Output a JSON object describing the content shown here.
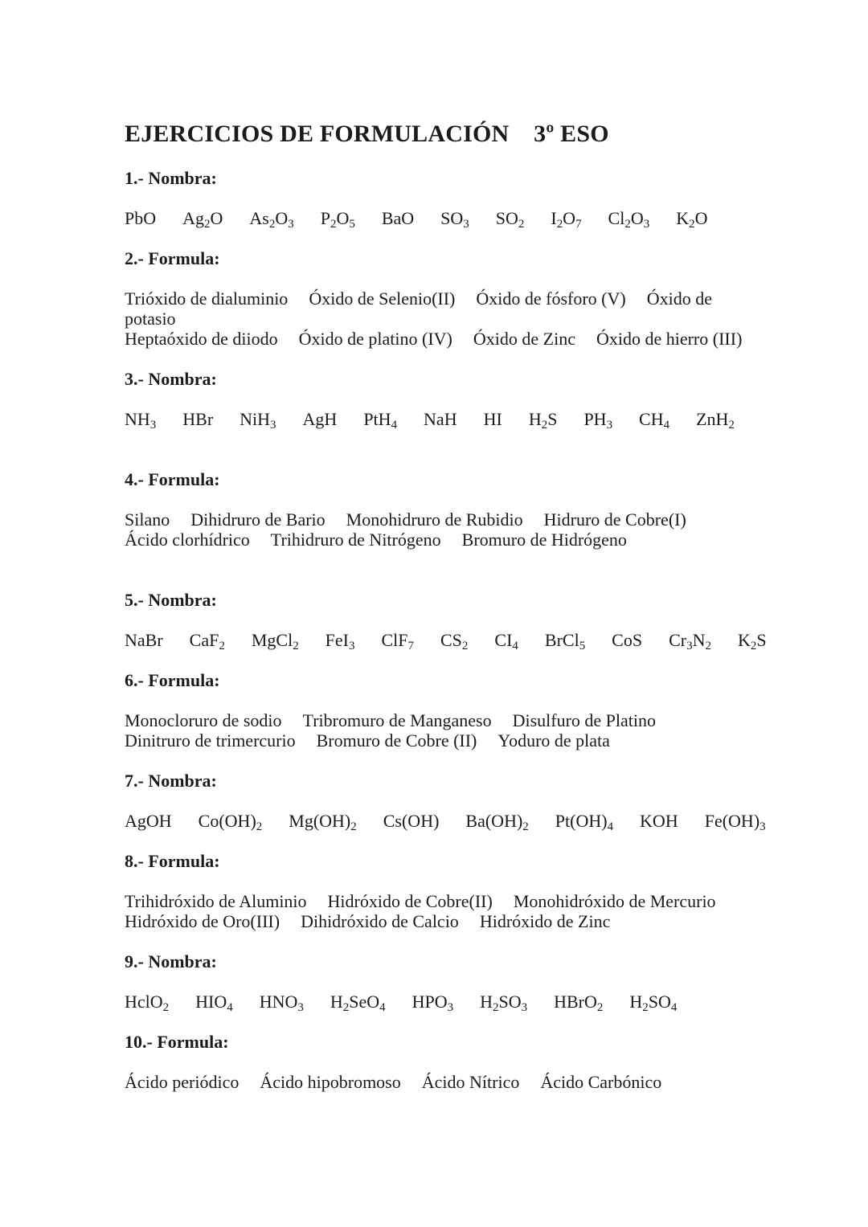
{
  "document": {
    "title": "EJERCICIOS DE FORMULACIÓN    3º ESO",
    "text_color": "#1b1b1b",
    "background_color": "#ffffff",
    "sections": [
      {
        "heading": "1.- Nombra:",
        "lines": [
          {
            "kind": "formulas",
            "items": [
              "PbO",
              "Ag2O",
              "As2O3",
              "P2O5",
              "BaO",
              "SO3",
              "SO2",
              "I2O7",
              "Cl2O3",
              "K2O"
            ]
          }
        ]
      },
      {
        "heading": "2.- Formula:",
        "lines": [
          {
            "kind": "names",
            "items": [
              "Trióxido de dialuminio",
              "Óxido de Selenio(II)",
              "Óxido de fósforo (V)",
              "Óxido de"
            ]
          },
          {
            "kind": "names",
            "items": [
              "potasio"
            ]
          },
          {
            "kind": "names",
            "items": [
              "Heptaóxido de diiodo",
              "Óxido de platino (IV)",
              "Óxido de Zinc",
              "Óxido de hierro (III)"
            ]
          }
        ]
      },
      {
        "heading": "3.- Nombra:",
        "lines": [
          {
            "kind": "formulas",
            "items": [
              "NH3",
              "HBr",
              "NiH3",
              "AgH",
              "PtH4",
              "NaH",
              "HI",
              "H2S",
              "PH3",
              "CH4",
              "ZnH2"
            ]
          },
          {
            "kind": "blank"
          }
        ]
      },
      {
        "heading": "4.- Formula:",
        "lines": [
          {
            "kind": "names",
            "items": [
              "Silano",
              "Dihidruro de Bario",
              "Monohidruro de Rubidio",
              "Hidruro de Cobre(I)"
            ]
          },
          {
            "kind": "names",
            "items": [
              "Ácido clorhídrico",
              "Trihidruro de Nitrógeno",
              "Bromuro de Hidrógeno"
            ]
          },
          {
            "kind": "blank"
          }
        ]
      },
      {
        "heading": "5.- Nombra:",
        "lines": [
          {
            "kind": "formulas",
            "items": [
              "NaBr",
              "CaF2",
              "MgCl2",
              "FeI3",
              "ClF7",
              "CS2",
              "CI4",
              "BrCl5",
              "CoS",
              "Cr3N2",
              "K2S"
            ]
          }
        ]
      },
      {
        "heading": "6.- Formula:",
        "lines": [
          {
            "kind": "names",
            "items": [
              "Monocloruro de sodio",
              "Tribromuro de Manganeso",
              "Disulfuro de Platino"
            ]
          },
          {
            "kind": "names",
            "items": [
              "Dinitruro de trimercurio",
              "Bromuro de Cobre (II)",
              "Yoduro de plata"
            ]
          }
        ]
      },
      {
        "heading": "7.- Nombra:",
        "lines": [
          {
            "kind": "formulas",
            "items": [
              "AgOH",
              "Co(OH)2",
              "Mg(OH)2",
              "Cs(OH)",
              "Ba(OH)2",
              "Pt(OH)4",
              "KOH",
              "Fe(OH)3"
            ]
          }
        ]
      },
      {
        "heading": "8.- Formula:",
        "lines": [
          {
            "kind": "names",
            "items": [
              "Trihidróxido de Aluminio",
              "Hidróxido de Cobre(II)",
              "Monohidróxido de Mercurio"
            ]
          },
          {
            "kind": "names",
            "items": [
              "Hidróxido de Oro(III)",
              "Dihidróxido de Calcio",
              "Hidróxido de Zinc"
            ]
          }
        ]
      },
      {
        "heading": "9.- Nombra:",
        "lines": [
          {
            "kind": "formulas",
            "items": [
              "HclO2",
              "HIO4",
              "HNO3",
              "H2SeO4",
              "HPO3",
              "H2SO3",
              "HBrO2",
              "H2SO4"
            ]
          }
        ]
      },
      {
        "heading": "10.- Formula:",
        "lines": [
          {
            "kind": "names",
            "items": [
              "Ácido periódico",
              "Ácido hipobromoso",
              "Ácido Nítrico",
              "Ácido Carbónico"
            ]
          }
        ]
      }
    ]
  }
}
